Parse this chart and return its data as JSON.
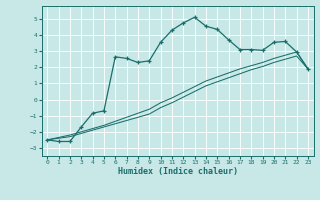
{
  "bg_color": "#c8e8e8",
  "grid_color": "#b0d8d8",
  "line_color": "#1a6e6a",
  "xlabel": "Humidex (Indice chaleur)",
  "xlim": [
    -0.5,
    23.5
  ],
  "ylim": [
    -3.5,
    5.8
  ],
  "yticks": [
    -3,
    -2,
    -1,
    0,
    1,
    2,
    3,
    4,
    5
  ],
  "xtick_labels": [
    "0",
    "1",
    "2",
    "3",
    "4",
    "5",
    "6",
    "7",
    "8",
    "9",
    "10",
    "11",
    "12",
    "13",
    "14",
    "15",
    "16",
    "17",
    "18",
    "19",
    "20",
    "21",
    "22",
    "23"
  ],
  "curve1_x": [
    0,
    1,
    2,
    3,
    4,
    5,
    6,
    7,
    8,
    9,
    10,
    11,
    12,
    13,
    14,
    15,
    16,
    17,
    18,
    19,
    20,
    21,
    22,
    23
  ],
  "curve1_y": [
    -2.5,
    -2.6,
    -2.6,
    -1.7,
    -0.85,
    -0.7,
    2.65,
    2.55,
    2.3,
    2.4,
    3.55,
    4.3,
    4.75,
    5.1,
    4.55,
    4.35,
    3.7,
    3.1,
    3.1,
    3.05,
    3.55,
    3.6,
    2.95,
    1.9
  ],
  "curve2_x": [
    0,
    1,
    2,
    3,
    4,
    5,
    6,
    7,
    8,
    9,
    10,
    11,
    12,
    13,
    14,
    15,
    16,
    17,
    18,
    19,
    20,
    21,
    22,
    23
  ],
  "curve2_y": [
    -2.5,
    -2.4,
    -2.3,
    -2.1,
    -1.9,
    -1.7,
    -1.5,
    -1.3,
    -1.1,
    -0.9,
    -0.5,
    -0.2,
    0.15,
    0.5,
    0.85,
    1.1,
    1.35,
    1.6,
    1.85,
    2.05,
    2.3,
    2.5,
    2.7,
    1.9
  ],
  "curve3_x": [
    0,
    1,
    2,
    3,
    4,
    5,
    6,
    7,
    8,
    9,
    10,
    11,
    12,
    13,
    14,
    15,
    16,
    17,
    18,
    19,
    20,
    21,
    22,
    23
  ],
  "curve3_y": [
    -2.5,
    -2.35,
    -2.2,
    -2.0,
    -1.8,
    -1.6,
    -1.35,
    -1.1,
    -0.85,
    -0.6,
    -0.2,
    0.1,
    0.45,
    0.8,
    1.15,
    1.4,
    1.65,
    1.9,
    2.1,
    2.3,
    2.55,
    2.75,
    2.95,
    1.9
  ]
}
